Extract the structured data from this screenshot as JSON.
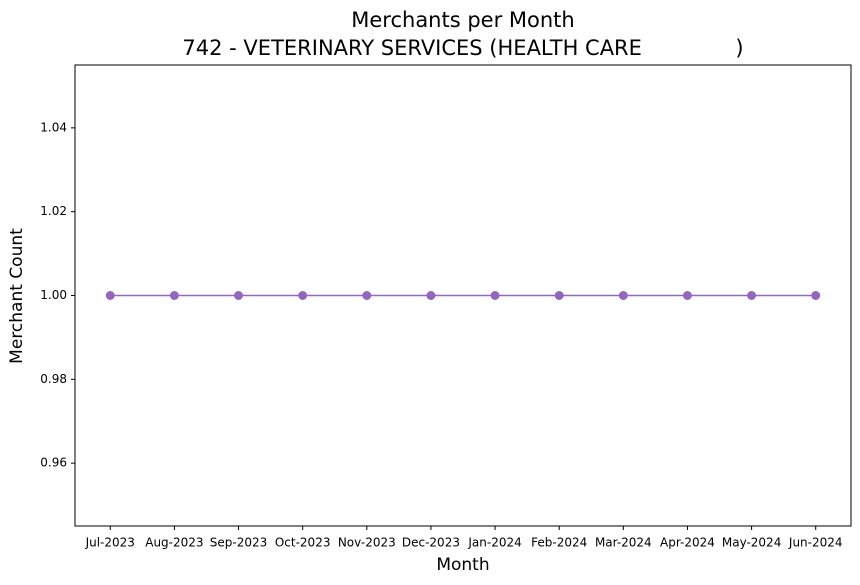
{
  "chart_data": {
    "type": "line",
    "title": "Merchants per Month",
    "subtitle": "742 - VETERINARY SERVICES (HEALTH CARE              )",
    "x_label": "Month",
    "y_label": "Merchant Count",
    "categories": [
      "Jul-2023",
      "Aug-2023",
      "Sep-2023",
      "Oct-2023",
      "Nov-2023",
      "Dec-2023",
      "Jan-2024",
      "Feb-2024",
      "Mar-2024",
      "Apr-2024",
      "May-2024",
      "Jun-2024"
    ],
    "values": [
      1,
      1,
      1,
      1,
      1,
      1,
      1,
      1,
      1,
      1,
      1,
      1
    ],
    "color": "#9467bd",
    "ylim": [
      0.945,
      1.055
    ],
    "yticks": [
      0.96,
      0.98,
      {
        "value": 1.0,
        "label": "1.00"
      },
      1.02,
      1.04
    ],
    "grid": false
  }
}
